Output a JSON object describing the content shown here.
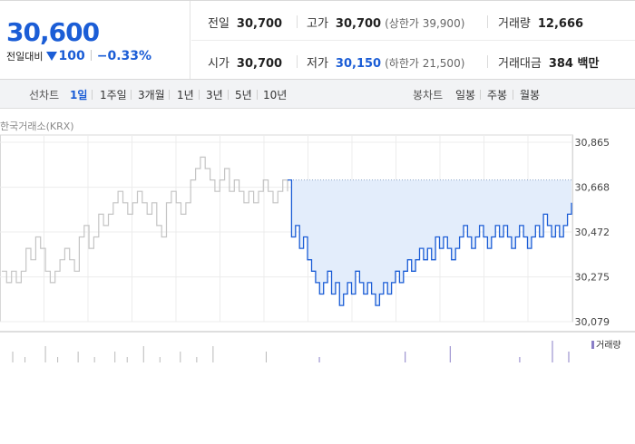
{
  "quote": {
    "price": "30,600",
    "change_label": "전일대비",
    "change_value": "100",
    "change_pct": "−0.33%",
    "prev_close_label": "전일",
    "prev_close": "30,700",
    "high_label": "고가",
    "high": "30,700",
    "upper_limit": "(상한가 39,900)",
    "volume_label": "거래량",
    "volume": "12,666",
    "open_label": "시가",
    "open": "30,700",
    "low_label": "저가",
    "low": "30,150",
    "lower_limit": "(하한가 21,500)",
    "trade_value_label": "거래대금",
    "trade_value": "384 백만"
  },
  "period_bar": {
    "line_title": "선차트",
    "line_periods": [
      "1일",
      "1주일",
      "3개월",
      "1년",
      "3년",
      "5년",
      "10년"
    ],
    "active_period": "1일",
    "candle_title": "봉차트",
    "candle_periods": [
      "일봉",
      "주봉",
      "월봉"
    ]
  },
  "chart": {
    "exchange": "한국거래소(KRX)",
    "volume_legend": "거래량"
  },
  "colors": {
    "price_blue": "#1b5dd6",
    "prev_day_gray": "#c4c4c4",
    "fill": "#e3edfb",
    "volume": "#8a7fc7"
  },
  "chart_data": {
    "type": "line",
    "title": "",
    "y_ticks": [
      "30,865",
      "30,668",
      "30,472",
      "30,275",
      "30,079"
    ],
    "ylim": [
      30079,
      30865
    ],
    "reference_line": 30700,
    "series": [
      {
        "values": [
          30300,
          30250,
          30300,
          30250,
          30300,
          30400,
          30350,
          30450,
          30400,
          30300,
          30250,
          30300,
          30350,
          30400,
          30350,
          30300,
          30450,
          30500,
          30400,
          30450,
          30550,
          30500,
          30550,
          30600,
          30650,
          30600,
          30550,
          30600,
          30650,
          30600,
          30550,
          30600,
          30500,
          30450,
          30600,
          30650,
          30600,
          30550,
          30600,
          30700,
          30750,
          30800,
          30750,
          30700,
          30650,
          30700,
          30750,
          30650,
          30700,
          30650,
          30600,
          30650,
          30600,
          30650,
          30700,
          30650,
          30600,
          30650,
          30700,
          30650
        ]
      },
      {
        "values": [
          30700,
          30450,
          30500,
          30400,
          30450,
          30350,
          30300,
          30250,
          30200,
          30250,
          30300,
          30200,
          30250,
          30150,
          30200,
          30250,
          30200,
          30300,
          30250,
          30200,
          30250,
          30200,
          30150,
          30200,
          30250,
          30200,
          30250,
          30300,
          30250,
          30300,
          30350,
          30300,
          30350,
          30400,
          30350,
          30400,
          30350,
          30450,
          30400,
          30450,
          30400,
          30350,
          30400,
          30450,
          30500,
          30450,
          30400,
          30450,
          30500,
          30450,
          30400,
          30450,
          30500,
          30450,
          30500,
          30450,
          30400,
          30450,
          30500,
          30450,
          30400,
          30450,
          30500,
          30450,
          30550,
          30500,
          30450,
          30500,
          30450,
          30500,
          30550,
          30600
        ]
      }
    ],
    "volume": [
      0,
      0,
      0,
      2,
      0,
      0,
      1,
      0,
      0,
      0,
      0,
      3,
      0,
      0,
      1,
      0,
      0,
      0,
      0,
      2,
      0,
      0,
      0,
      1,
      0,
      0,
      0,
      0,
      2,
      0,
      0,
      1,
      0,
      0,
      0,
      3,
      0,
      0,
      0,
      1,
      0,
      0,
      0,
      0,
      2,
      0,
      0,
      0,
      1,
      0,
      0,
      0,
      3,
      0,
      0,
      0,
      0,
      0,
      0,
      0,
      0,
      0,
      0,
      0,
      0,
      2,
      0,
      0,
      0,
      0,
      0,
      0,
      0,
      0,
      0,
      0,
      0,
      0,
      1,
      0,
      0,
      0,
      0,
      0,
      0,
      0,
      0,
      0,
      0,
      0,
      0,
      0,
      0,
      0,
      0,
      0,
      0,
      0,
      0,
      2,
      0,
      0,
      0,
      0,
      0,
      0,
      0,
      0,
      0,
      0,
      3,
      0,
      0,
      0,
      0,
      0,
      0,
      0,
      0,
      0,
      0,
      0,
      0,
      0,
      0,
      0,
      0,
      1,
      0,
      0,
      0,
      0,
      0,
      0,
      0,
      4,
      0,
      0,
      0,
      2
    ]
  }
}
